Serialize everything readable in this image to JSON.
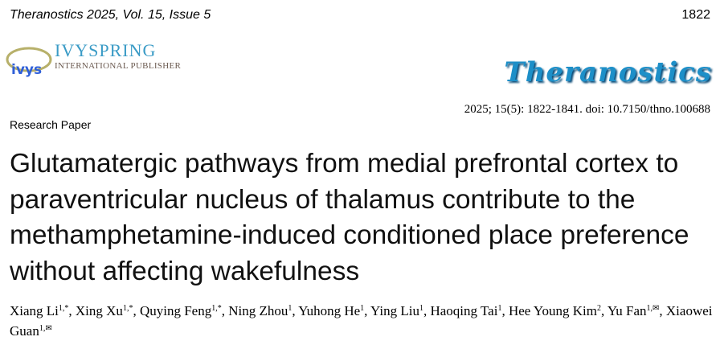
{
  "header": {
    "running_title": "Theranostics 2025, Vol. 15, Issue 5",
    "page_number": "1822"
  },
  "publisher": {
    "name": "IVYSPRING",
    "subtitle": "INTERNATIONAL PUBLISHER",
    "logo_text": "ivys"
  },
  "journal": {
    "logo_text": "Theranostics",
    "citation": "2025; 15(5): 1822-1841. doi: 10.7150/thno.100688"
  },
  "article_type": "Research Paper",
  "title": "Glutamatergic pathways from medial prefrontal cortex to paraventricular nucleus of thalamus contribute to the methamphetamine-induced conditioned place preference without affecting wakefulness",
  "authors": [
    {
      "name": "Xiang Li",
      "aff": "1,*",
      "sep": ", "
    },
    {
      "name": "Xing Xu",
      "aff": "1,*",
      "sep": ", "
    },
    {
      "name": "Quying Feng",
      "aff": "1,*",
      "sep": ", "
    },
    {
      "name": "Ning Zhou",
      "aff": "1",
      "sep": ", "
    },
    {
      "name": "Yuhong He",
      "aff": "1",
      "sep": ", "
    },
    {
      "name": "Ying Liu",
      "aff": "1",
      "sep": ", "
    },
    {
      "name": "Haoqing Tai",
      "aff": "1",
      "sep": ", "
    },
    {
      "name": "Hee Young Kim",
      "aff": "2",
      "sep": ", "
    },
    {
      "name": "Yu Fan",
      "aff": "1,✉",
      "sep": ", "
    },
    {
      "name": "Xiaowei Guan",
      "aff": "1,✉",
      "sep": ""
    }
  ]
}
